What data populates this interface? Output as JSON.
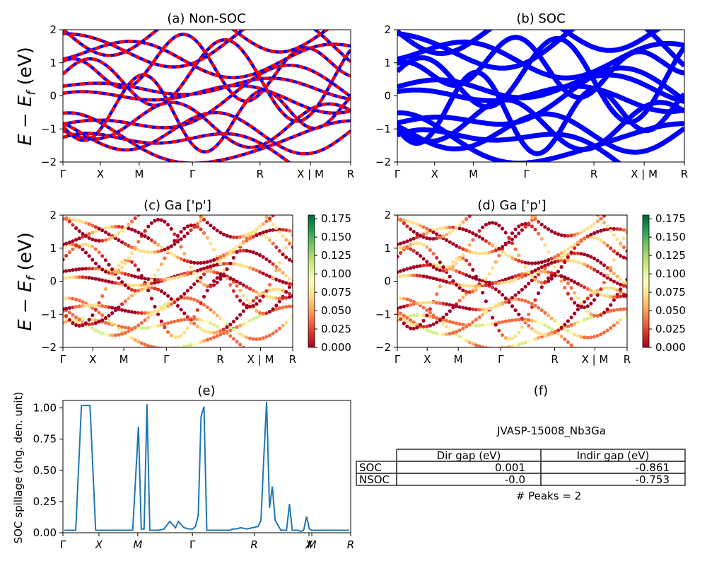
{
  "y_axis_label_main": "E − E_f (eV)",
  "band_panels": [
    {
      "id": "a",
      "title": "(a) Non-SOC",
      "type": "line",
      "ylim": [
        -2,
        2
      ],
      "y_ticks": [
        "2",
        "1",
        "0",
        "−1",
        "−2"
      ],
      "x_ticks": [
        "Γ",
        "X",
        "M",
        "Γ",
        "R",
        "X | M",
        "R"
      ],
      "colors": [
        "#0000ff",
        "#ff0000"
      ]
    },
    {
      "id": "b",
      "title": "(b) SOC",
      "type": "line",
      "ylim": [
        -2,
        2
      ],
      "y_ticks": [
        "2",
        "1",
        "0",
        "−1",
        "−2"
      ],
      "x_ticks": [
        "Γ",
        "X",
        "M",
        "Γ",
        "R",
        "X | M",
        "R"
      ],
      "colors": [
        "#0000ff"
      ]
    },
    {
      "id": "c",
      "title": "(c)  Ga ['p']",
      "type": "scatter",
      "ylim": [
        -2,
        2
      ],
      "y_ticks": [
        "2",
        "1",
        "0",
        "−1",
        "−2"
      ],
      "x_ticks": [
        "Γ",
        "X",
        "M",
        "Γ",
        "R",
        "X | M",
        "R"
      ],
      "colorbar_ticks": [
        "0.175",
        "0.150",
        "0.125",
        "0.100",
        "0.075",
        "0.050",
        "0.025",
        "0.000"
      ],
      "colormap": "RdYlGn"
    },
    {
      "id": "d",
      "title": "(d) Ga ['p']",
      "type": "scatter",
      "ylim": [
        -2,
        2
      ],
      "y_ticks": [
        "2",
        "1",
        "0",
        "−1",
        "−2"
      ],
      "x_ticks": [
        "Γ",
        "X",
        "M",
        "Γ",
        "R",
        "X | M",
        "R"
      ],
      "colorbar_ticks": [
        "0.175",
        "0.150",
        "0.125",
        "0.100",
        "0.075",
        "0.050",
        "0.025",
        "0.000"
      ],
      "colormap": "RdYlGn"
    }
  ],
  "chart_data": {
    "type": "line",
    "title": "(e)",
    "ylabel": "SOC spillage (chg. den. unit)",
    "ylim": [
      0,
      1.06
    ],
    "y_ticks": [
      "1.00",
      "0.75",
      "0.50",
      "0.25",
      "0.00"
    ],
    "x_ticks": [
      "Γ",
      "X",
      "M",
      "Γ",
      "R",
      "X",
      "M",
      "R"
    ],
    "color": "#1f77b4",
    "series": [
      {
        "x": [
          0,
          4,
          6,
          7,
          9,
          11,
          13,
          20,
          24,
          26,
          27,
          28,
          29,
          30,
          31,
          33,
          35,
          37,
          39,
          40,
          42,
          44,
          45,
          46,
          47,
          48,
          49,
          50,
          52,
          54,
          56,
          57,
          58,
          59,
          60,
          62,
          64,
          66,
          68,
          69,
          70,
          71,
          72,
          73,
          74,
          76,
          77,
          78,
          79,
          80,
          81,
          82,
          83,
          84,
          85,
          86,
          87,
          88,
          89,
          90,
          92,
          95,
          96,
          97,
          98,
          99,
          100
        ],
        "y": [
          0.02,
          0.02,
          1.02,
          1.02,
          1.02,
          0.02,
          0.02,
          0.02,
          0.02,
          0.85,
          0.03,
          0.03,
          1.03,
          0.02,
          0.02,
          0.02,
          0.03,
          0.09,
          0.04,
          0.09,
          0.04,
          0.03,
          0.03,
          0.05,
          0.14,
          0.93,
          1.01,
          0.02,
          0.02,
          0.02,
          0.02,
          0.02,
          0.02,
          0.03,
          0.03,
          0.04,
          0.03,
          0.04,
          0.05,
          0.1,
          0.6,
          1.05,
          0.2,
          0.37,
          0.1,
          0.02,
          0.02,
          0.02,
          0.23,
          0.02,
          0.02,
          0.02,
          0.01,
          0.02,
          0.13,
          0.03,
          0.02,
          0.02,
          0.02,
          0.02,
          0.02,
          0.02,
          0.02,
          0.02,
          0.02,
          0.02,
          0.02
        ]
      }
    ]
  },
  "table_panel": {
    "title": "(f)",
    "name": "JVASP-15008_Nb3Ga",
    "columns": [
      "",
      "Dir gap (eV)",
      "Indir gap (eV)"
    ],
    "rows": [
      [
        "SOC",
        "0.001",
        "-0.861"
      ],
      [
        "NSOC",
        "-0.0",
        "-0.753"
      ]
    ],
    "peaks": "# Peaks = 2"
  }
}
